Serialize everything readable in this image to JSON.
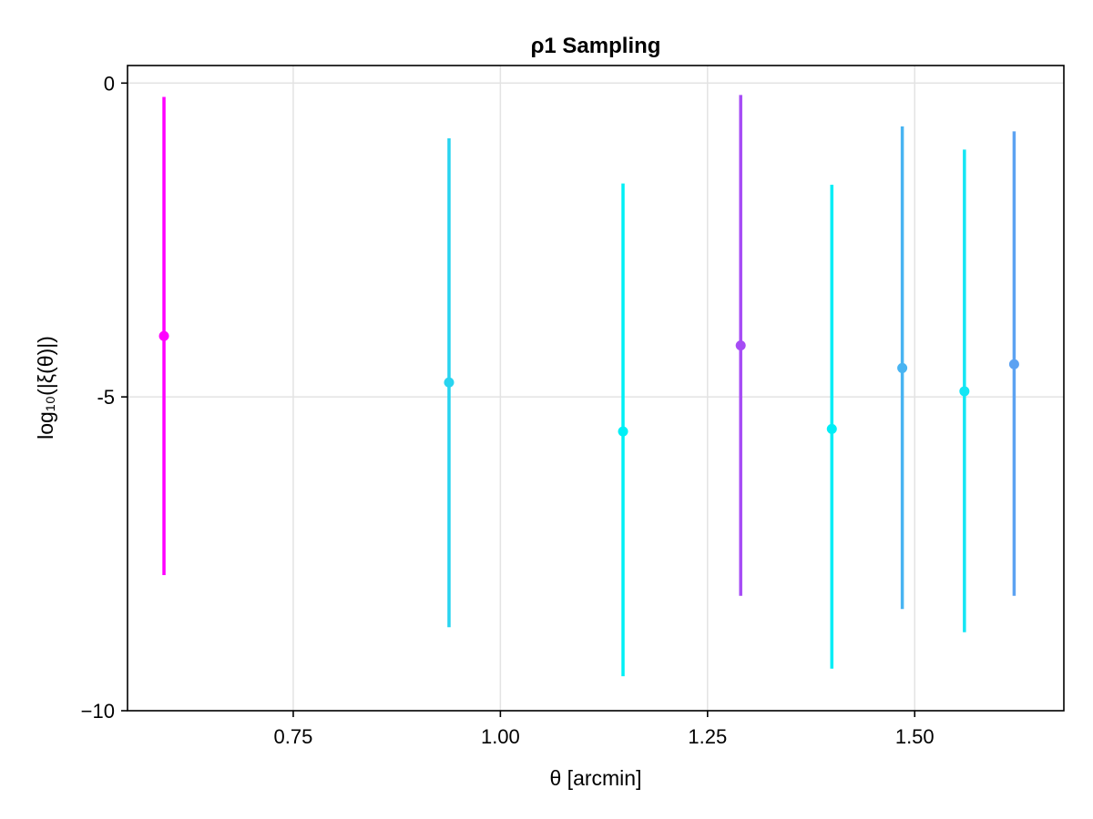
{
  "chart_data": {
    "type": "scatter",
    "title": "ρ1 Sampling",
    "xlabel": "θ [arcmin]",
    "ylabel": "log₁₀(|ξ(θ)|)",
    "xlim": [
      0.55,
      1.68
    ],
    "ylim": [
      -10.0,
      0.28
    ],
    "x_ticks": [
      0.75,
      1.0,
      1.25,
      1.5
    ],
    "x_tick_labels": [
      "0.75",
      "1.00",
      "1.25",
      "1.50"
    ],
    "y_ticks": [
      0,
      -5,
      -10
    ],
    "y_tick_labels": [
      "0",
      "-5",
      "−10"
    ],
    "grid": true,
    "legend": "none",
    "points": [
      {
        "x": 0.594,
        "y": -4.03,
        "lower": -7.84,
        "upper": -0.22,
        "color": "#ff00ff"
      },
      {
        "x": 0.938,
        "y": -4.77,
        "lower": -8.67,
        "upper": -0.88,
        "color": "#28d4f0"
      },
      {
        "x": 1.148,
        "y": -5.55,
        "lower": -9.45,
        "upper": -1.6,
        "color": "#00f0f6"
      },
      {
        "x": 1.29,
        "y": -4.18,
        "lower": -8.17,
        "upper": -0.19,
        "color": "#a64cf5"
      },
      {
        "x": 1.4,
        "y": -5.51,
        "lower": -9.33,
        "upper": -1.62,
        "color": "#00eef6"
      },
      {
        "x": 1.485,
        "y": -4.54,
        "lower": -8.38,
        "upper": -0.69,
        "color": "#48b4f2"
      },
      {
        "x": 1.56,
        "y": -4.91,
        "lower": -8.75,
        "upper": -1.06,
        "color": "#14e6f4"
      },
      {
        "x": 1.62,
        "y": -4.48,
        "lower": -8.17,
        "upper": -0.77,
        "color": "#5ca2f2"
      }
    ]
  }
}
